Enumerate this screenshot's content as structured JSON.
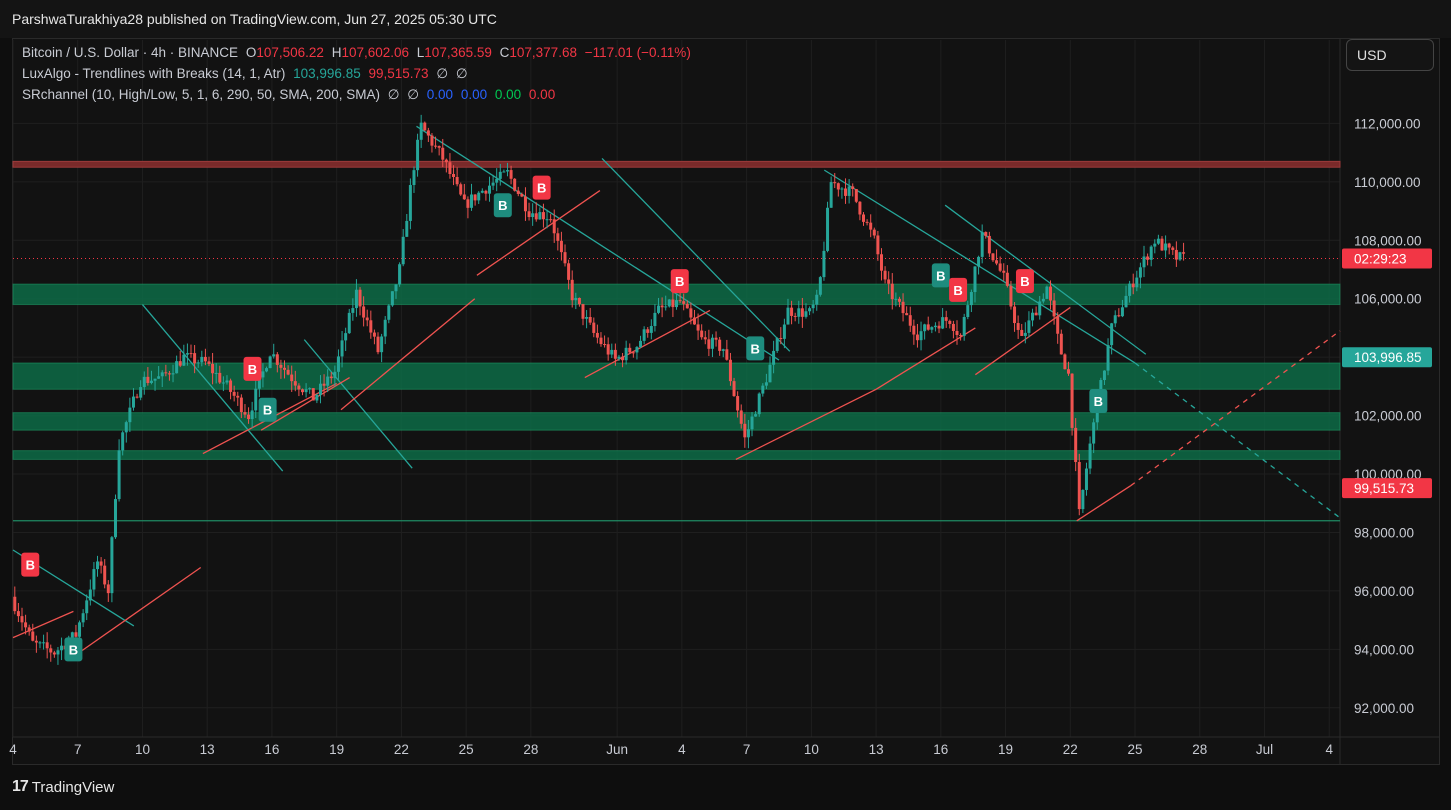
{
  "header": {
    "published": "ParshwaTurakhiya28 published on TradingView.com, Jun 27, 2025 05:30 UTC"
  },
  "legend": {
    "symbol": "Bitcoin / U.S. Dollar · 4h · BINANCE",
    "o_label": "O",
    "o": "107,506.22",
    "h_label": "H",
    "h": "107,602.06",
    "l_label": "L",
    "l": "107,365.59",
    "c_label": "C",
    "c": "107,377.68",
    "change": "−117.01 (−0.11%)",
    "luxalgo_name": "LuxAlgo - Trendlines with Breaks (14, 1, Atr)",
    "luxalgo_v1": "103,996.85",
    "luxalgo_v2": "99,515.73",
    "luxalgo_v3": "∅",
    "luxalgo_v4": "∅",
    "sr_name": "SRchannel (10, High/Low, 5, 1, 6, 290, 50, SMA, 200, SMA)",
    "sr_v1": "∅",
    "sr_v2": "∅",
    "sr_v3": "0.00",
    "sr_v4": "0.00",
    "sr_v5": "0.00",
    "sr_v6": "0.00"
  },
  "currency": "USD",
  "footer": {
    "brand": "TradingView",
    "logo_glyph": "17"
  },
  "colors": {
    "up": "#26a69a",
    "down": "#ef5350",
    "zone": "#0d6b46",
    "resistance": "#7a2a2a"
  },
  "chart_data": {
    "type": "candlestick",
    "x_start": "May 4, 2025",
    "bar_interval": "4h",
    "ylim": [
      91000,
      112800
    ],
    "y_ticks": [
      "112,000.00",
      "110,000.00",
      "108,000.00",
      "106,000.00",
      "104,000.00",
      "102,000.00",
      "100,000.00",
      "98,000.00",
      "96,000.00",
      "94,000.00",
      "92,000.00"
    ],
    "y_tick_values": [
      112000,
      110000,
      108000,
      106000,
      104000,
      102000,
      100000,
      98000,
      96000,
      94000,
      92000
    ],
    "x_ticks": [
      "4",
      "7",
      "10",
      "13",
      "16",
      "19",
      "22",
      "25",
      "28",
      "Jun",
      "4",
      "7",
      "10",
      "13",
      "16",
      "19",
      "22",
      "25",
      "28",
      "Jul",
      "4"
    ],
    "x_tick_days": [
      0,
      3,
      6,
      9,
      12,
      15,
      18,
      21,
      24,
      28,
      31,
      34,
      37,
      40,
      43,
      46,
      49,
      52,
      55,
      58,
      61
    ],
    "x_max_day": 61.5,
    "path_days": [
      0,
      1,
      2,
      3,
      4,
      4.5,
      5,
      6,
      7,
      8,
      9,
      10,
      11,
      12,
      13,
      14,
      15,
      16,
      17,
      18,
      18.6,
      19,
      20,
      21,
      22,
      23,
      24,
      25,
      26,
      27,
      28,
      29,
      30,
      31,
      32,
      33,
      34,
      35,
      36,
      37,
      37.4,
      38,
      39,
      40,
      40.5,
      41,
      42,
      43,
      43.5,
      44,
      45,
      46,
      46.8,
      47,
      48,
      48.6,
      49,
      49.5,
      50,
      51,
      52,
      53,
      54,
      54.3
    ],
    "path_values": [
      95800,
      94200,
      93900,
      94500,
      97000,
      96000,
      101000,
      103200,
      103300,
      104000,
      103800,
      103000,
      102000,
      104200,
      103300,
      102600,
      103500,
      106200,
      104200,
      107000,
      110300,
      111900,
      110800,
      109200,
      109800,
      110300,
      109000,
      108800,
      106100,
      104800,
      103900,
      104400,
      105600,
      105900,
      104600,
      104300,
      101200,
      103300,
      105600,
      105500,
      106000,
      110000,
      109600,
      108000,
      106500,
      105900,
      104800,
      105200,
      105300,
      104700,
      108200,
      106700,
      104500,
      104900,
      106400,
      104300,
      103400,
      98600,
      101000,
      105000,
      106600,
      108000,
      107400,
      107378
    ],
    "zones": [
      {
        "low": 105800,
        "high": 106500
      },
      {
        "low": 102900,
        "high": 103800
      },
      {
        "low": 101500,
        "high": 102100
      },
      {
        "low": 100500,
        "high": 100800
      }
    ],
    "resistance_band": {
      "low": 110500,
      "high": 110700
    },
    "support_line": 98400,
    "current_price": 107377.68,
    "price_labels": [
      {
        "text": "02:29:23",
        "value": 107377.68,
        "color": "#f23645"
      },
      {
        "text": "103,996.85",
        "value": 103996.85,
        "color": "#26a69a"
      },
      {
        "text": "99,515.73",
        "value": 99515.73,
        "color": "#f23645"
      }
    ],
    "trendlines_down": [
      {
        "d1": 0,
        "v1": 97400,
        "d2": 5.6,
        "v2": 94800
      },
      {
        "d1": 6,
        "v1": 105800,
        "d2": 12.5,
        "v2": 100100
      },
      {
        "d1": 13.5,
        "v1": 104600,
        "d2": 18.5,
        "v2": 100200
      },
      {
        "d1": 18.7,
        "v1": 111900,
        "d2": 35.5,
        "v2": 103900
      },
      {
        "d1": 27.3,
        "v1": 110800,
        "d2": 36,
        "v2": 104200
      },
      {
        "d1": 37.6,
        "v1": 110400,
        "d2": 52,
        "v2": 103800
      },
      {
        "d1": 43.2,
        "v1": 109200,
        "d2": 52.5,
        "v2": 104100
      }
    ],
    "trendlines_up": [
      {
        "d1": 0,
        "v1": 94400,
        "d2": 2.8,
        "v2": 95300
      },
      {
        "d1": 2.7,
        "v1": 93700,
        "d2": 8.7,
        "v2": 96800
      },
      {
        "d1": 8.8,
        "v1": 100700,
        "d2": 15,
        "v2": 103100
      },
      {
        "d1": 11.5,
        "v1": 101500,
        "d2": 15.6,
        "v2": 103300
      },
      {
        "d1": 15.2,
        "v1": 102200,
        "d2": 21.4,
        "v2": 106000
      },
      {
        "d1": 21.5,
        "v1": 106800,
        "d2": 27.2,
        "v2": 109700
      },
      {
        "d1": 26.5,
        "v1": 103300,
        "d2": 32.3,
        "v2": 105600
      },
      {
        "d1": 33.5,
        "v1": 100500,
        "d2": 40,
        "v2": 102900
      },
      {
        "d1": 40,
        "v1": 102900,
        "d2": 44.6,
        "v2": 105000
      },
      {
        "d1": 44.6,
        "v1": 103400,
        "d2": 49,
        "v2": 105700
      },
      {
        "d1": 49.3,
        "v1": 98400,
        "d2": 51.8,
        "v2": 99600
      }
    ],
    "projection_down": {
      "d1": 52,
      "v1": 103800,
      "d2": 61.5,
      "v2": 98500
    },
    "projection_up": {
      "d1": 51.8,
      "v1": 99600,
      "d2": 61.5,
      "v2": 104900
    },
    "markers": [
      {
        "label": "B",
        "type": "sell",
        "day": 0.8,
        "value": 96900
      },
      {
        "label": "B",
        "type": "buy",
        "day": 2.8,
        "value": 94000
      },
      {
        "label": "B",
        "type": "sell",
        "day": 11.1,
        "value": 103600
      },
      {
        "label": "B",
        "type": "buy",
        "day": 11.8,
        "value": 102200
      },
      {
        "label": "B",
        "type": "buy",
        "day": 22.7,
        "value": 109200
      },
      {
        "label": "B",
        "type": "sell",
        "day": 24.5,
        "value": 109800
      },
      {
        "label": "B",
        "type": "sell",
        "day": 30.9,
        "value": 106600
      },
      {
        "label": "B",
        "type": "buy",
        "day": 34.4,
        "value": 104300
      },
      {
        "label": "B",
        "type": "buy",
        "day": 43,
        "value": 106800
      },
      {
        "label": "B",
        "type": "sell",
        "day": 43.8,
        "value": 106300
      },
      {
        "label": "B",
        "type": "sell",
        "day": 46.9,
        "value": 106600
      },
      {
        "label": "B",
        "type": "buy",
        "day": 50.3,
        "value": 102500
      }
    ]
  }
}
